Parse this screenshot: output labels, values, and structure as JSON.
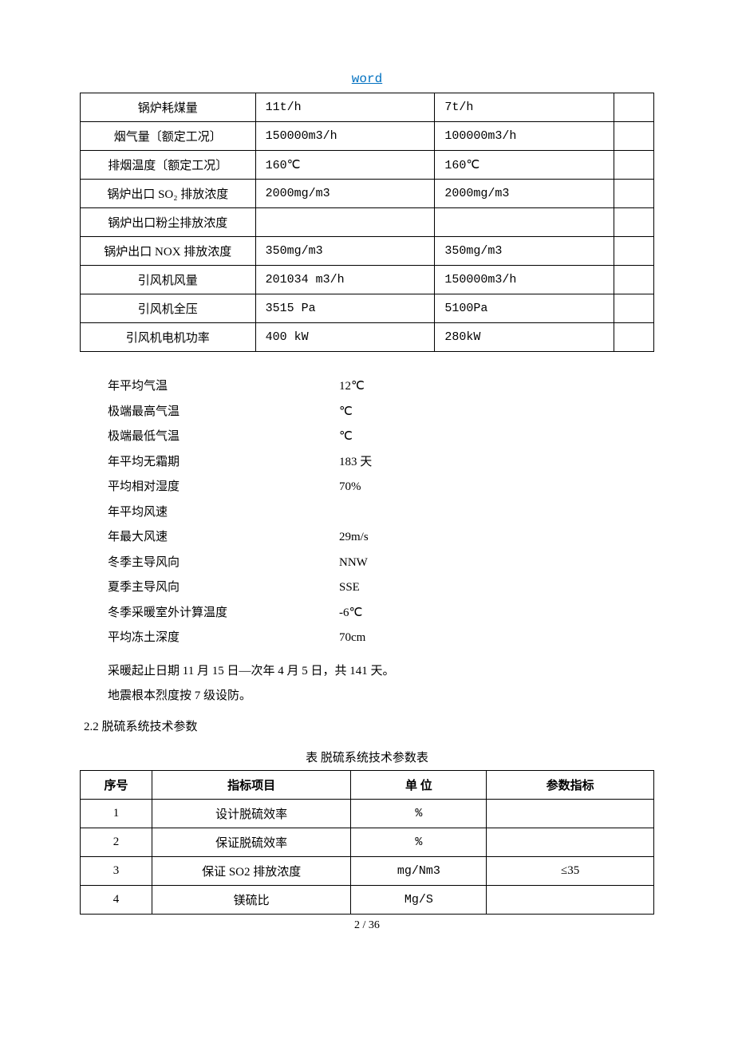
{
  "header": {
    "title": "word"
  },
  "table1": {
    "rows": [
      {
        "label": "锅炉耗煤量",
        "c2": "11t/h",
        "c3": "7t/h",
        "c4": ""
      },
      {
        "label": "烟气量〔额定工况〕",
        "c2": "150000m3/h",
        "c3": "100000m3/h",
        "c4": ""
      },
      {
        "label": "排烟温度〔额定工况〕",
        "c2": "160℃",
        "c3": "160℃",
        "c4": ""
      },
      {
        "label": "锅炉出口 SO₂ 排放浓度",
        "c2": "2000mg/m3",
        "c3": "2000mg/m3",
        "c4": ""
      },
      {
        "label": "锅炉出口粉尘排放浓度",
        "c2": "",
        "c3": "",
        "c4": ""
      },
      {
        "label": "锅炉出口 NOX 排放浓度",
        "c2": "350mg/m3",
        "c3": "350mg/m3",
        "c4": ""
      },
      {
        "label": "引风机风量",
        "c2": "201034 m3/h",
        "c3": "150000m3/h",
        "c4": ""
      },
      {
        "label": "引风机全压",
        "c2": "3515 Pa",
        "c3": "5100Pa",
        "c4": ""
      },
      {
        "label": "引风机电机功率",
        "c2": "400 kW",
        "c3": "280kW",
        "c4": ""
      }
    ]
  },
  "kv": [
    {
      "label": "年平均气温",
      "value": "12℃"
    },
    {
      "label": "极端最高气温",
      "value": "℃"
    },
    {
      "label": "极端最低气温",
      "value": "℃"
    },
    {
      "label": "年平均无霜期",
      "value": "183 天"
    },
    {
      "label": "平均相对湿度",
      "value": "70%"
    },
    {
      "label": "年平均风速",
      "value": ""
    },
    {
      "label": "年最大风速",
      "value": "29m/s"
    },
    {
      "label": "冬季主导风向",
      "value": "NNW"
    },
    {
      "label": "夏季主导风向",
      "value": "SSE"
    },
    {
      "label": "冬季采暖室外计算温度",
      "value": "-6℃"
    },
    {
      "label": "平均冻土深度",
      "value": "70cm"
    }
  ],
  "paragraphs": {
    "p1": "采暖起止日期 11 月 15 日—次年 4 月 5 日，共 141 天。",
    "p2": "地震根本烈度按 7 级设防。"
  },
  "section": {
    "num": "2.2 脱硫系统技术参数"
  },
  "table2": {
    "caption": "表 脱硫系统技术参数表",
    "header": {
      "c1": "序号",
      "c2": "指标项目",
      "c3": "单  位",
      "c4": "参数指标"
    },
    "rows": [
      {
        "c1": "1",
        "c2": "设计脱硫效率",
        "c3": "%",
        "c4": ""
      },
      {
        "c1": "2",
        "c2": "保证脱硫效率",
        "c3": "%",
        "c4": ""
      },
      {
        "c1": "3",
        "c2": "保证 SO2 排放浓度",
        "c3": "mg/Nm3",
        "c4": "≤35"
      },
      {
        "c1": "4",
        "c2": "镁硫比",
        "c3": "Mg/S",
        "c4": ""
      }
    ]
  },
  "footer": {
    "page": "2 / 36"
  }
}
